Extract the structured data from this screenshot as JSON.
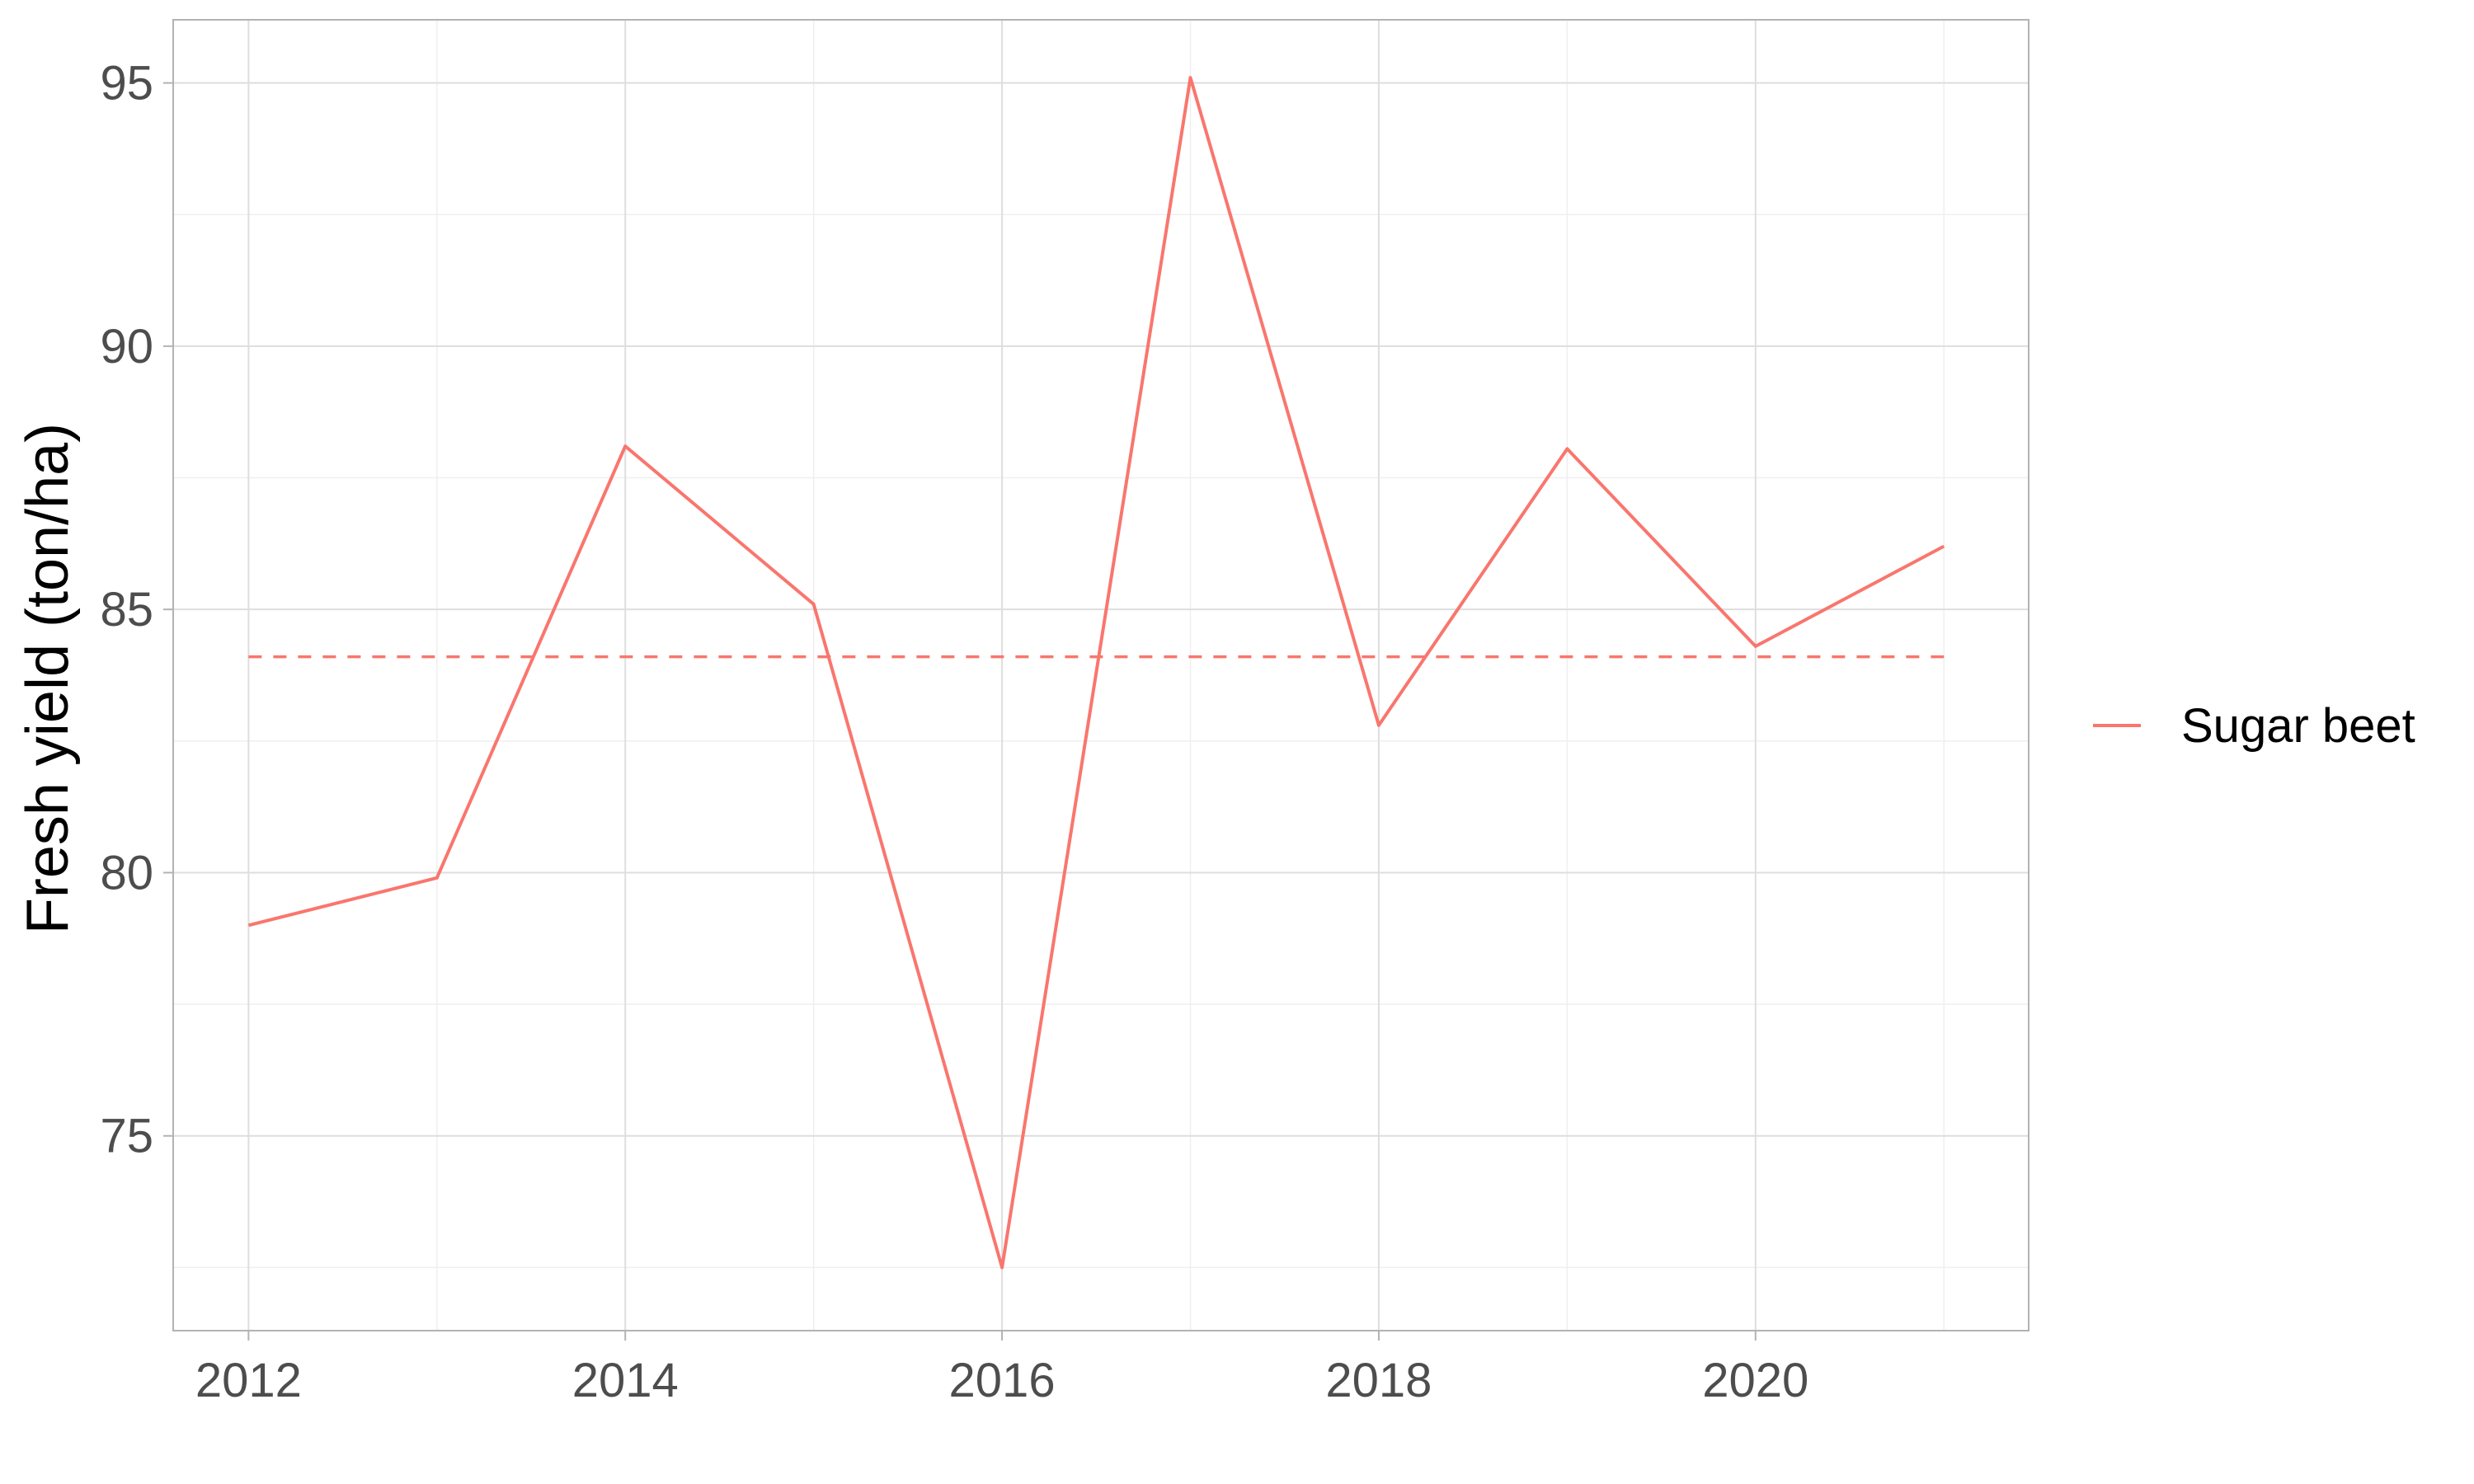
{
  "chart_data": {
    "type": "line",
    "title": "",
    "xlabel": "",
    "ylabel": "Fresh yield (ton/ha)",
    "x": [
      2012,
      2013,
      2014,
      2015,
      2016,
      2017,
      2018,
      2019,
      2020,
      2021
    ],
    "series": [
      {
        "name": "Sugar beet",
        "values": [
          79.0,
          79.9,
          88.1,
          85.1,
          72.5,
          95.1,
          82.8,
          88.05,
          84.3,
          86.2
        ],
        "color": "#F8766D"
      }
    ],
    "reference_line": {
      "value": 84.1,
      "style": "dashed",
      "color": "#F8766D"
    },
    "xlim": [
      2011.6,
      2021.45
    ],
    "ylim": [
      71.3,
      96.2
    ],
    "x_ticks": [
      2012,
      2014,
      2016,
      2018,
      2020
    ],
    "x_tick_labels": [
      "2012",
      "2014",
      "2016",
      "2018",
      "2020"
    ],
    "x_minor_ticks": [
      2013,
      2015,
      2017,
      2019,
      2021
    ],
    "y_ticks": [
      75,
      80,
      85,
      90,
      95
    ],
    "y_tick_labels": [
      "75",
      "80",
      "85",
      "90",
      "95"
    ],
    "y_minor_ticks": [
      72.5,
      77.5,
      82.5,
      87.5,
      92.5
    ],
    "grid": true,
    "legend_position": "right",
    "theme": "light",
    "colors": {
      "grid_major": "#DEDEDE",
      "grid_minor": "#EFEFEF",
      "panel_border": "#B3B3B3",
      "tick": "#B3B3B3"
    }
  }
}
